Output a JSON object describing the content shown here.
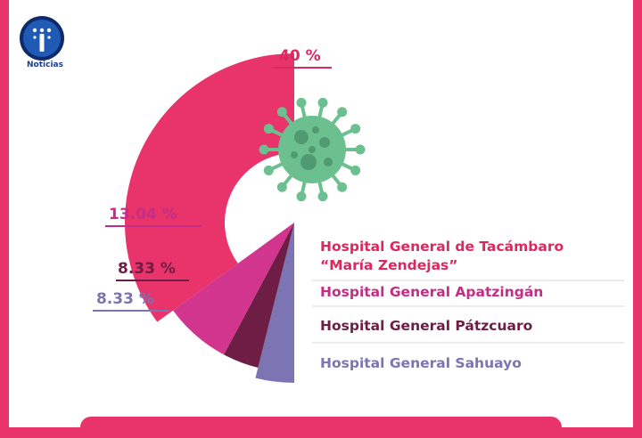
{
  "brand": {
    "logo_text": "Noticias"
  },
  "colors": {
    "frame": "#e8346a",
    "virus": "#6cc08f"
  },
  "chart_data": {
    "type": "pie",
    "style": "half-donut",
    "title": "",
    "slices": [
      {
        "label_line1": "Hospital General de Tacámbaro",
        "label_line2": "“María Zendejas”",
        "value": 40,
        "value_label": "40 %",
        "color": "#e8346a",
        "text_color": "#d92a5f"
      },
      {
        "label_line1": "Hospital General Apatzingán",
        "label_line2": "",
        "value": 13.04,
        "value_label": "13.04 %",
        "color": "#d1358e",
        "text_color": "#c42d86"
      },
      {
        "label_line1": "Hospital General Pátzcuaro",
        "label_line2": "",
        "value": 8.33,
        "value_label": "8.33 %",
        "color": "#6e1d44",
        "text_color": "#6e1d44"
      },
      {
        "label_line1": "Hospital General Sahuayo",
        "label_line2": "",
        "value": 8.33,
        "value_label": "8.33 %",
        "color": "#7c74b3",
        "text_color": "#7c74b3"
      }
    ]
  }
}
